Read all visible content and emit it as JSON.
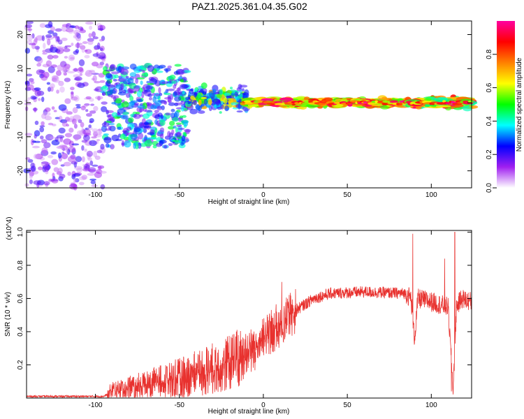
{
  "chart_data": [
    {
      "type": "heatmap",
      "title": "PAZ1.2025.361.04.35.G02",
      "xlabel": "Height of straight line (km)",
      "ylabel": "Frequency (Hz)",
      "xlim": [
        -141,
        124
      ],
      "ylim": [
        -25,
        24
      ],
      "xticks": [
        -100,
        -50,
        0,
        50,
        100
      ],
      "yticks": [
        -20,
        -10,
        0,
        10,
        20
      ],
      "colorbar": {
        "label": "Normalized spectral amplitude",
        "range": [
          0.0,
          1.0
        ],
        "ticks": [
          0.0,
          0.2,
          0.4,
          0.6,
          0.8
        ],
        "colors": [
          "#ffffff",
          "#a020f0",
          "#0000ff",
          "#00ffff",
          "#00ff00",
          "#ffff00",
          "#ff8000",
          "#ff0000",
          "#ff00a0"
        ]
      },
      "regions": [
        {
          "x": [
            -141,
            -95
          ],
          "freq_spread_hz": [
            -25,
            24
          ],
          "amplitude": [
            0.05,
            0.25
          ],
          "description": "scattered"
        },
        {
          "x": [
            -95,
            -45
          ],
          "freq_spread_hz": [
            -13,
            11
          ],
          "amplitude": [
            0.15,
            0.5
          ]
        },
        {
          "x": [
            -45,
            -10
          ],
          "freq_spread_hz": [
            -4,
            6
          ],
          "amplitude": [
            0.2,
            0.7
          ]
        },
        {
          "x": [
            -10,
            85
          ],
          "freq_spread_hz": [
            -1.5,
            1.5
          ],
          "amplitude": [
            0.5,
            1.0
          ]
        },
        {
          "x": [
            85,
            124
          ],
          "freq_spread_hz": [
            -2,
            2
          ],
          "amplitude": [
            0.4,
            1.0
          ]
        }
      ]
    },
    {
      "type": "line",
      "xlabel": "Height of straight line (km)",
      "ylabel": "SNR (10 * v/v)",
      "y_multiplier": "(x10^4)",
      "xlim": [
        -141,
        124
      ],
      "ylim": [
        0.0,
        1.01
      ],
      "xticks": [
        -100,
        -50,
        0,
        50,
        100
      ],
      "yticks": [
        0.2,
        0.4,
        0.6,
        0.8,
        1.0
      ],
      "series": [
        {
          "name": "SNR",
          "color": "#e8312e",
          "trend_x": [
            -141,
            -95,
            -90,
            -70,
            -50,
            -30,
            -15,
            -5,
            5,
            15,
            30,
            40,
            60,
            85,
            88,
            90,
            92,
            100,
            110,
            113,
            115,
            118,
            124
          ],
          "trend_y": [
            0.01,
            0.01,
            0.04,
            0.08,
            0.12,
            0.18,
            0.24,
            0.3,
            0.4,
            0.5,
            0.6,
            0.63,
            0.64,
            0.63,
            0.6,
            0.35,
            0.6,
            0.58,
            0.55,
            0.05,
            0.55,
            0.6,
            0.58
          ],
          "spikes": [
            {
              "x": 11,
              "y": 0.7
            },
            {
              "x": 89,
              "y": 0.99
            },
            {
              "x": 90,
              "y": 0.33
            },
            {
              "x": 108,
              "y": 0.84
            },
            {
              "x": 112,
              "y": 0.04
            },
            {
              "x": 114,
              "y": 1.0
            }
          ]
        }
      ]
    }
  ]
}
